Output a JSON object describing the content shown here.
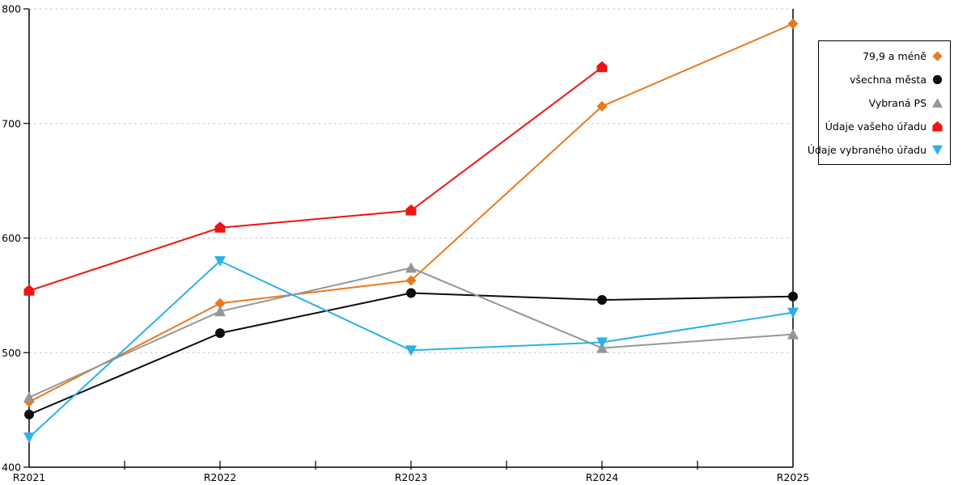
{
  "chart_data": {
    "type": "line",
    "categories": [
      "R2021",
      "R2022",
      "R2023",
      "R2024",
      "R2025"
    ],
    "series": [
      {
        "name": "79,9 a méně",
        "marker": "diamond",
        "color": "#e8791e",
        "values": [
          457,
          543,
          563,
          715,
          787
        ]
      },
      {
        "name": "všechna města",
        "marker": "circle",
        "color": "#0d0d0d",
        "values": [
          446,
          517,
          552,
          546,
          549
        ]
      },
      {
        "name": "Vybraná PS",
        "marker": "triangle-up",
        "color": "#979797",
        "values": [
          461,
          536,
          574,
          504,
          516
        ]
      },
      {
        "name": "Údaje vašeho úřadu",
        "marker": "pentagon",
        "color": "#ee1414",
        "values": [
          554,
          609,
          624,
          749,
          null
        ]
      },
      {
        "name": "Údaje vybraného úřadu",
        "marker": "triangle-down",
        "color": "#2bb0ec",
        "values": [
          426,
          580,
          502,
          509,
          535
        ]
      }
    ],
    "title": "",
    "xlabel": "",
    "ylabel": "",
    "ylim": [
      400,
      800
    ],
    "yticks": [
      400,
      500,
      600,
      700,
      800
    ],
    "grid": "horizontal-dotted",
    "gridline_color": "#c2c2c2",
    "axis_color": "#000000",
    "legend_position": "top-right-boxed"
  }
}
